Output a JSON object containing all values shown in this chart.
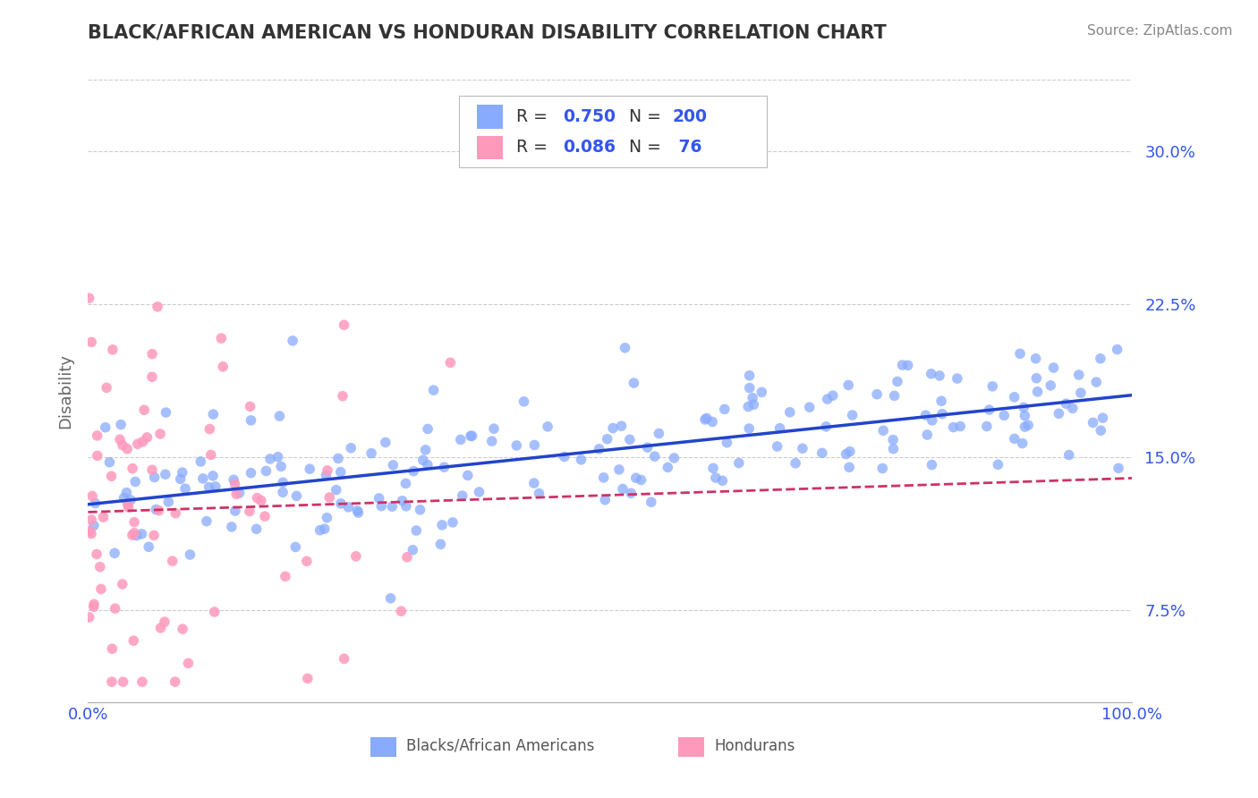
{
  "title": "BLACK/AFRICAN AMERICAN VS HONDURAN DISABILITY CORRELATION CHART",
  "source": "Source: ZipAtlas.com",
  "ylabel": "Disability",
  "ytick_labels": [
    "7.5%",
    "15.0%",
    "22.5%",
    "30.0%"
  ],
  "ytick_vals": [
    0.075,
    0.15,
    0.225,
    0.3
  ],
  "xlim": [
    0.0,
    1.0
  ],
  "ylim": [
    0.03,
    0.335
  ],
  "blue_color": "#88AAFF",
  "pink_color": "#FF99BB",
  "blue_line_color": "#2244CC",
  "pink_line_color": "#CC3366",
  "blue_R": 0.75,
  "blue_N": 200,
  "pink_R": 0.086,
  "pink_N": 76,
  "title_color": "#333333",
  "axis_label_color": "#3355EE",
  "background_color": "#FFFFFF",
  "grid_color": "#CCCCCC",
  "source_color": "#888888"
}
